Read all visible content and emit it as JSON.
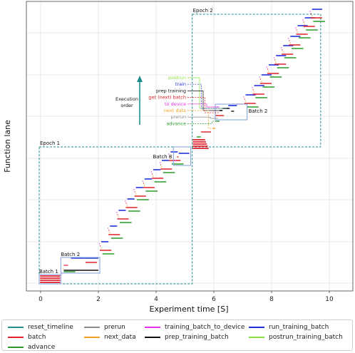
{
  "chart_data": {
    "type": "timeline",
    "xlabel": "Experiment time [S]",
    "ylabel": "Function lane",
    "xlim": [
      -0.5,
      10.1
    ],
    "xticks": [
      0,
      2,
      4,
      6,
      8,
      10
    ],
    "x_tick_labels": [
      "0",
      "2",
      "4",
      "6",
      "8",
      "10"
    ],
    "y_axis_ticks_labeled": false,
    "grid": true,
    "series": [
      {
        "name": "reset_timeline",
        "color": "#1f8c8c"
      },
      {
        "name": "batch",
        "color": "#e0202a"
      },
      {
        "name": "advance",
        "color": "#2a9a2a"
      },
      {
        "name": "prerun",
        "color": "#8c8c8c"
      },
      {
        "name": "next_data",
        "color": "#f0a020"
      },
      {
        "name": "training_batch_to_device",
        "color": "#e830e8"
      },
      {
        "name": "prep_training_batch",
        "color": "#111111"
      },
      {
        "name": "run_training_batch",
        "color": "#2030d8"
      },
      {
        "name": "postrun_training_batch",
        "color": "#88e040"
      }
    ],
    "epochs": [
      {
        "label": "Epoch 1",
        "x_start": -0.05,
        "x_end": 5.25
      },
      {
        "label": "Epoch 2",
        "x_start": 5.25,
        "x_end": 9.7
      }
    ],
    "batch_boxes": [
      {
        "label": "Batch 1",
        "x_start": -0.05,
        "x_end": 0.7
      },
      {
        "label": "Batch 2",
        "x_start": 0.7,
        "x_end": 2.05
      },
      {
        "label": "Batch 8",
        "x_start": 4.6,
        "x_end": 5.2
      },
      {
        "label": "Batch 2",
        "x_start": 6.05,
        "x_end": 7.15
      }
    ],
    "annotation_labels": [
      "postrun",
      "train",
      "prep training",
      "get (next) batch",
      "to device",
      "next data",
      "prerun",
      "advance"
    ],
    "annotation_title": "Execution\norder",
    "legend_position": "bottom"
  }
}
